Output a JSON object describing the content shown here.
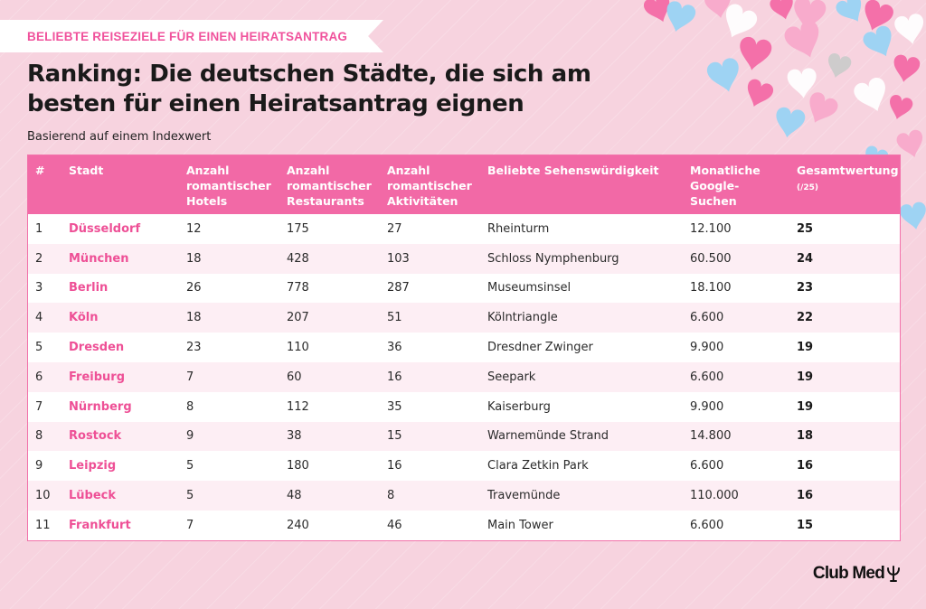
{
  "tag": "BELIEBTE REISEZIELE FÜR EINEN HEIRATSANTRAG",
  "title": "Ranking: Die deutschen Städte, die sich am besten für einen Heiratsantrag eignen",
  "subtitle": "Basierend auf einem Indexwert",
  "headers": {
    "rank": "#",
    "city": "Stadt",
    "hotels": "Anzahl romantischer Hotels",
    "restaurants": "Anzahl romantischer Restaurants",
    "activities": "Anzahl romantischer Aktivitäten",
    "sight": "Beliebte Sehenswürdigkeit",
    "searches": "Monatliche Google-Suchen",
    "score": "Gesamtwertung",
    "score_sub": "(/25)"
  },
  "rows": [
    {
      "rank": "1",
      "city": "Düsseldorf",
      "hotels": "12",
      "restaurants": "175",
      "activities": "27",
      "sight": "Rheinturm",
      "searches": "12.100",
      "score": "25"
    },
    {
      "rank": "2",
      "city": "München",
      "hotels": "18",
      "restaurants": "428",
      "activities": "103",
      "sight": "Schloss Nymphenburg",
      "searches": "60.500",
      "score": "24"
    },
    {
      "rank": "3",
      "city": "Berlin",
      "hotels": "26",
      "restaurants": "778",
      "activities": "287",
      "sight": "Museumsinsel",
      "searches": "18.100",
      "score": "23"
    },
    {
      "rank": "4",
      "city": "Köln",
      "hotels": "18",
      "restaurants": "207",
      "activities": "51",
      "sight": "Kölntriangle",
      "searches": "6.600",
      "score": "22"
    },
    {
      "rank": "5",
      "city": "Dresden",
      "hotels": "23",
      "restaurants": "110",
      "activities": "36",
      "sight": "Dresdner Zwinger",
      "searches": "9.900",
      "score": "19"
    },
    {
      "rank": "6",
      "city": "Freiburg",
      "hotels": "7",
      "restaurants": "60",
      "activities": "16",
      "sight": "Seepark",
      "searches": "6.600",
      "score": "19"
    },
    {
      "rank": "7",
      "city": "Nürnberg",
      "hotels": "8",
      "restaurants": "112",
      "activities": "35",
      "sight": "Kaiserburg",
      "searches": "9.900",
      "score": "19"
    },
    {
      "rank": "8",
      "city": "Rostock",
      "hotels": "9",
      "restaurants": "38",
      "activities": "15",
      "sight": "Warnemünde Strand",
      "searches": "14.800",
      "score": "18"
    },
    {
      "rank": "9",
      "city": "Leipzig",
      "hotels": "5",
      "restaurants": "180",
      "activities": "16",
      "sight": "Clara Zetkin Park",
      "searches": "6.600",
      "score": "16"
    },
    {
      "rank": "10",
      "city": "Lübeck",
      "hotels": "5",
      "restaurants": "48",
      "activities": "8",
      "sight": "Travemünde",
      "searches": "110.000",
      "score": "16"
    },
    {
      "rank": "11",
      "city": "Frankfurt",
      "hotels": "7",
      "restaurants": "240",
      "activities": "46",
      "sight": "Main Tower",
      "searches": "6.600",
      "score": "15"
    }
  ],
  "logo": "Club Med",
  "colors": {
    "accent": "#f269a6",
    "city": "#ee5096",
    "background": "#f7d3df"
  },
  "icons": {
    "decoration": "hearts-icon",
    "logo": "trident-icon"
  }
}
